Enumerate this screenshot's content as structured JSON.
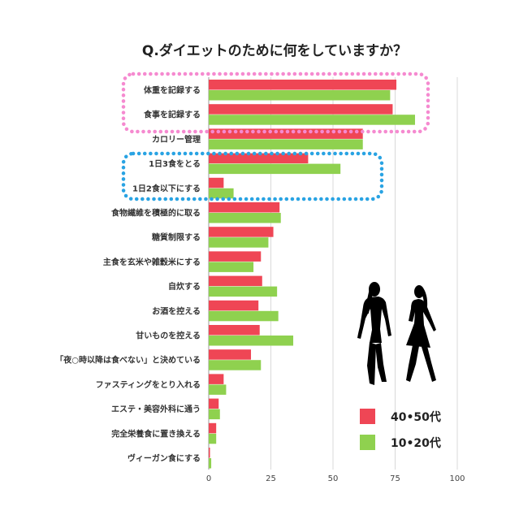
{
  "chart_data": {
    "type": "bar",
    "orientation": "horizontal",
    "title": "Q.ダイエットのために何をしていますか？",
    "categories": [
      "体重を記録する",
      "食事を記録する",
      "カロリー管理",
      "1日3食をとる",
      "1日2食以下にする",
      "食物繊維を積極的に取る",
      "糖質制限する",
      "主食を玄米や雑穀米にする",
      "自炊する",
      "お酒を控える",
      "甘いものを控える",
      "「夜○時以降は食べない」と決めている",
      "ファスティングをとり入れる",
      "エステ・美容外科に通う",
      "完全栄養食に置き換える",
      "ヴィーガン食にする"
    ],
    "series": [
      {
        "name": "40•50代",
        "color": "#ef4655",
        "values": [
          75.5,
          74,
          62,
          40,
          6,
          28.5,
          26,
          21,
          21.5,
          20,
          20.5,
          17,
          6,
          4,
          3,
          0.5
        ]
      },
      {
        "name": "10•20代",
        "color": "#8fd14f",
        "values": [
          73,
          83,
          62,
          53,
          10,
          29,
          24,
          18,
          27.5,
          28,
          34,
          21,
          7,
          4.5,
          3,
          1
        ]
      }
    ],
    "xticks": [
      0,
      25,
      50,
      75,
      100
    ],
    "xlim": [
      0,
      100
    ],
    "grid": true,
    "legend": "bottom-right",
    "highlight_groups": [
      {
        "color": "#f58ad0",
        "style": "dotted",
        "categories": [
          "体重を記録する",
          "食事を記録する"
        ]
      },
      {
        "color": "#29a3e3",
        "style": "dotted",
        "categories": [
          "1日3食をとる",
          "1日2食以下にする"
        ]
      }
    ]
  },
  "illustration": {
    "icon": "two-women-silhouette-icon"
  }
}
